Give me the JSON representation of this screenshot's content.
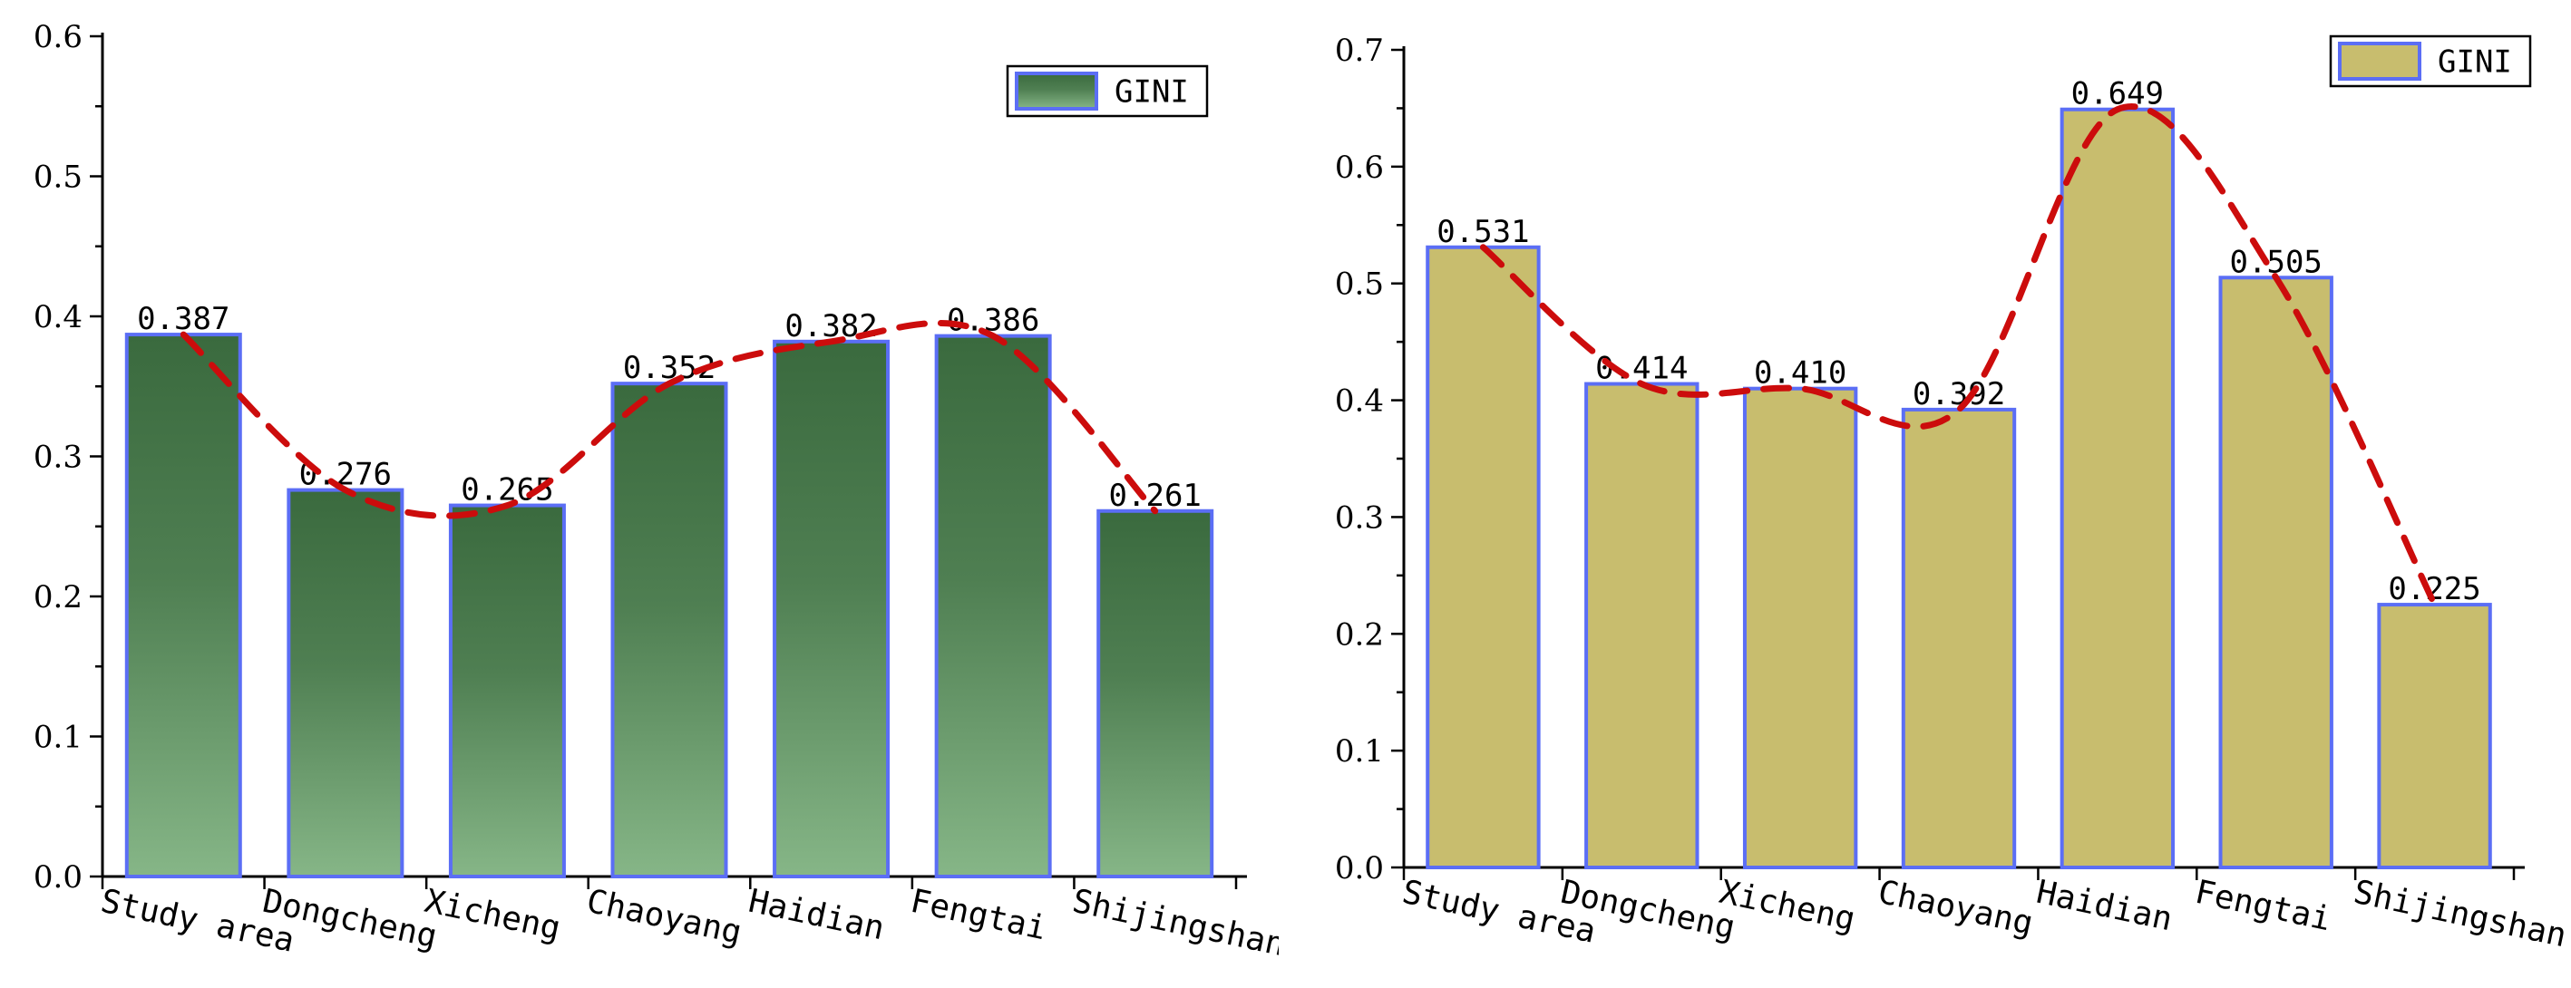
{
  "chart_data": [
    {
      "type": "bar",
      "title": "",
      "xlabel": "",
      "ylabel": "",
      "categories": [
        "Study area",
        "Dongcheng",
        "Xicheng",
        "Chaoyang",
        "Haidian",
        "Fengtai",
        "Shijingshan"
      ],
      "series": [
        {
          "name": "GINI",
          "values": [
            0.387,
            0.276,
            0.265,
            0.352,
            0.382,
            0.386,
            0.261
          ]
        }
      ],
      "value_labels": [
        "0.387",
        "0.276",
        "0.265",
        "0.352",
        "0.382",
        "0.386",
        "0.261"
      ],
      "ylim": [
        0,
        0.6
      ],
      "yticks": [
        "0.0",
        "0.1",
        "0.2",
        "0.3",
        "0.4",
        "0.5",
        "0.6"
      ],
      "legend": {
        "label": "GINI",
        "position": "top-right"
      },
      "trend_line": "dashed smooth curve through bar tops",
      "colors": {
        "bar_top": "#3a6a3e",
        "bar_bottom": "#86b687",
        "bar_edge": "#5b6ef5",
        "trend": "#cc0c0c"
      }
    },
    {
      "type": "bar",
      "title": "",
      "xlabel": "",
      "ylabel": "",
      "categories": [
        "Study area",
        "Dongcheng",
        "Xicheng",
        "Chaoyang",
        "Haidian",
        "Fengtai",
        "Shijingshan"
      ],
      "series": [
        {
          "name": "GINI",
          "values": [
            0.531,
            0.414,
            0.41,
            0.392,
            0.649,
            0.505,
            0.225
          ]
        }
      ],
      "value_labels": [
        "0.531",
        "0.414",
        "0.410",
        "0.392",
        "0.649",
        "0.505",
        "0.225"
      ],
      "ylim": [
        0,
        0.7
      ],
      "yticks": [
        "0.0",
        "0.1",
        "0.2",
        "0.3",
        "0.4",
        "0.5",
        "0.6",
        "0.7"
      ],
      "legend": {
        "label": "GINI",
        "position": "top-right"
      },
      "trend_line": "dashed smooth curve through bar tops",
      "colors": {
        "bar_fill": "#c8bd6e",
        "bar_edge": "#5b6ef5",
        "trend": "#cc0c0c"
      }
    }
  ]
}
